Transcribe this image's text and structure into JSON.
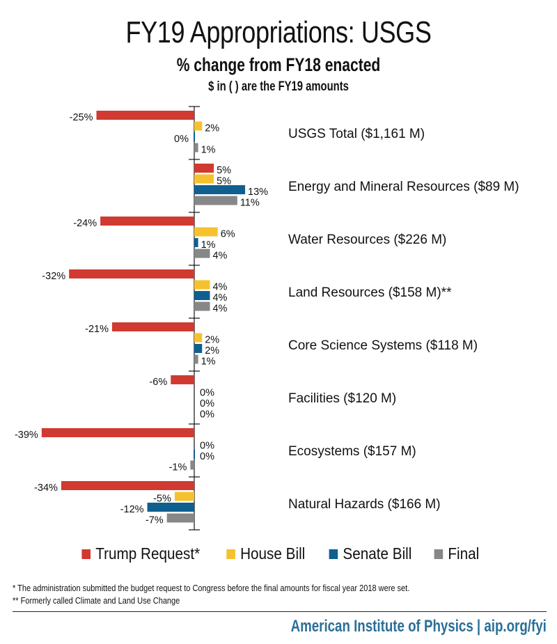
{
  "header": {
    "title": "FY19 Appropriations: USGS",
    "subtitle": "% change from FY18 enacted",
    "subtitle2": "$ in ( ) are the FY19 amounts"
  },
  "chart_data": {
    "type": "bar",
    "orientation": "horizontal",
    "title": "FY19 Appropriations: USGS",
    "subtitle": "% change from FY18 enacted",
    "xlabel": "",
    "ylabel": "",
    "unit": "%",
    "xlim": [
      -40,
      14
    ],
    "grid": false,
    "legend_position": "bottom",
    "categories": [
      "USGS Total ($1,161 M)",
      "Energy and Mineral Resources ($89 M)",
      "Water Resources ($226 M)",
      "Land Resources ($158 M)**",
      "Core Science Systems ($118 M)",
      "Facilities ($120 M)",
      "Ecosystems ($157 M)",
      "Natural Hazards ($166 M)"
    ],
    "series": [
      {
        "name": "Trump Request*",
        "color": "#d03a30",
        "values": [
          -25,
          5,
          -24,
          -32,
          -21,
          -6,
          -39,
          -34
        ],
        "labels": [
          "-25%",
          "5%",
          "-24%",
          "-32%",
          "-21%",
          "-6%",
          "-39%",
          "-34%"
        ]
      },
      {
        "name": "House Bill",
        "color": "#f5c22f",
        "values": [
          2,
          5,
          6,
          4,
          2,
          0,
          0,
          -5
        ],
        "labels": [
          "2%",
          "5%",
          "6%",
          "4%",
          "2%",
          "0%",
          "0%",
          "-5%"
        ]
      },
      {
        "name": "Senate Bill",
        "color": "#0f5f8f",
        "values": [
          0,
          13,
          1,
          4,
          2,
          0,
          0,
          -12
        ],
        "labels": [
          "0%",
          "13%",
          "1%",
          "4%",
          "2%",
          "0%",
          "0%",
          "-12%"
        ]
      },
      {
        "name": "Final",
        "color": "#878787",
        "values": [
          1,
          11,
          4,
          4,
          1,
          0,
          -1,
          -7
        ],
        "labels": [
          "1%",
          "11%",
          "4%",
          "4%",
          "1%",
          "0%",
          "-1%",
          "-7%"
        ]
      }
    ]
  },
  "footnotes": [
    "* The administration submitted the budget request to Congress before the final amounts for fiscal year 2018 were set.",
    "** Formerly called Climate and Land Use Change"
  ],
  "credit": "American Institute of Physics | aip.org/fyi"
}
